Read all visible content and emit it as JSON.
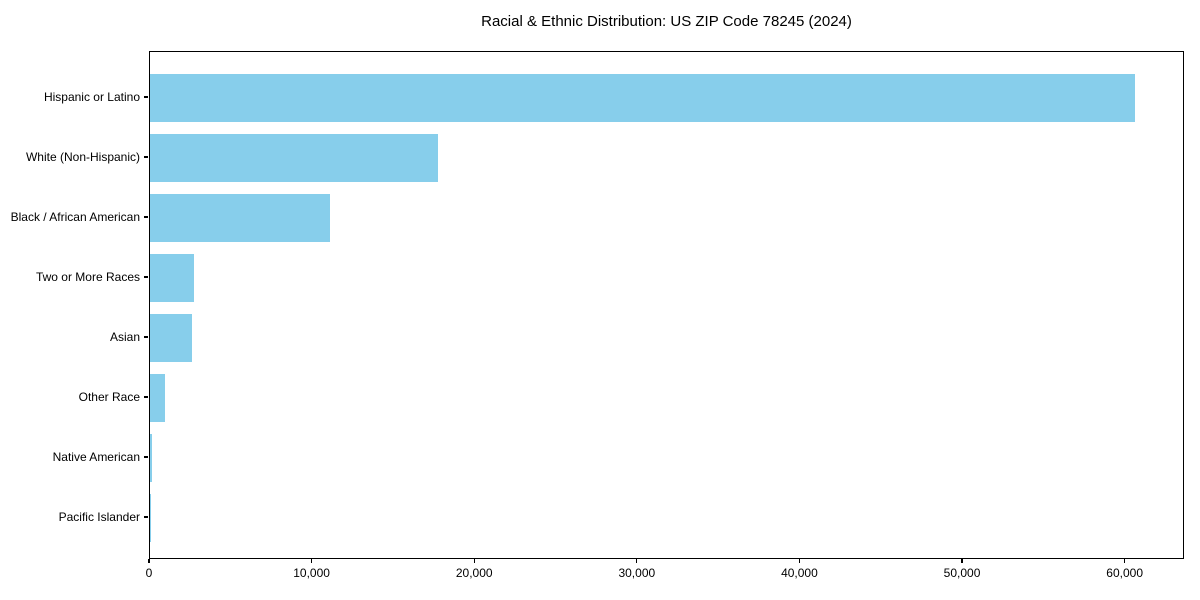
{
  "title": "Racial & Ethnic Distribution: US ZIP Code 78245 (2024)",
  "colors": {
    "bar": "#87CEEB",
    "axis": "#000000",
    "background": "#FFFFFF",
    "text": "#000000"
  },
  "chart_data": {
    "type": "bar",
    "orientation": "horizontal",
    "title": "Racial & Ethnic Distribution: US ZIP Code 78245 (2024)",
    "categories": [
      "Hispanic or Latino",
      "White (Non-Hispanic)",
      "Black / African American",
      "Two or More Races",
      "Asian",
      "Other Race",
      "Native American",
      "Pacific Islander"
    ],
    "values": [
      60600,
      17700,
      11100,
      2700,
      2600,
      950,
      120,
      40
    ],
    "xlabel": "",
    "ylabel": "",
    "xlim": [
      0,
      63650
    ],
    "x_ticks": [
      0,
      10000,
      20000,
      30000,
      40000,
      50000,
      60000
    ],
    "x_tick_labels": [
      "0",
      "10,000",
      "20,000",
      "30,000",
      "40,000",
      "50,000",
      "60,000"
    ],
    "bar_color": "#87CEEB",
    "grid": false,
    "legend": null
  }
}
